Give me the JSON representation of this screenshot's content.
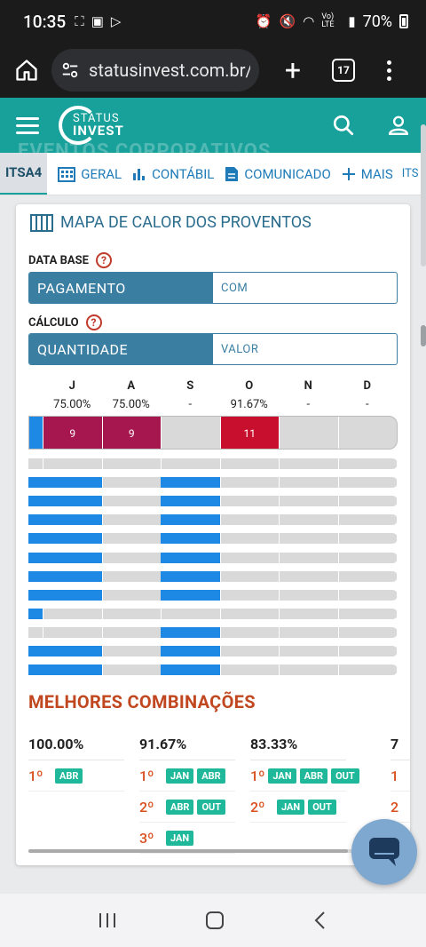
{
  "status_bar": {
    "time": "10:35",
    "battery": "70%",
    "net_label": "Vo) LTE"
  },
  "browser": {
    "url": "statusinvest.com.br/a",
    "tab_count": "17"
  },
  "site": {
    "logo_top": "STATUS",
    "logo_bottom": "INVEST",
    "ghost_title": "EVENTOS CORPORATIVOS"
  },
  "tabs": {
    "ticker": "ITSA4",
    "items": [
      {
        "label": "GERAL",
        "icon": "building-icon"
      },
      {
        "label": "CONTÁBIL",
        "icon": "bar-chart-icon"
      },
      {
        "label": "COMUNICADO",
        "icon": "document-icon"
      },
      {
        "label": "MAIS",
        "icon": "plus-icon"
      }
    ],
    "overflow": "ITS"
  },
  "heatmap": {
    "title": "MAPA DE CALOR DOS PROVENTOS",
    "data_base_label": "DATA BASE",
    "data_base_options": {
      "active": "PAGAMENTO",
      "inactive": "COM"
    },
    "calculo_label": "CÁLCULO",
    "calculo_options": {
      "active": "QUANTIDADE",
      "inactive": "VALOR"
    },
    "months": [
      "J",
      "A",
      "S",
      "O",
      "N",
      "D"
    ],
    "percentages": [
      "75.00%",
      "75.00%",
      "-",
      "91.67%",
      "-",
      "-"
    ],
    "counts": [
      "9",
      "9",
      "",
      "11",
      "",
      ""
    ],
    "count_colors": [
      "#a5174e",
      "#a5174e",
      "",
      "#c8102e",
      "",
      ""
    ],
    "year_rows": [
      [
        0,
        0,
        0,
        0,
        0,
        0,
        0
      ],
      [
        1,
        1,
        0,
        1,
        0,
        0,
        0
      ],
      [
        1,
        1,
        0,
        1,
        0,
        0,
        0
      ],
      [
        1,
        1,
        0,
        1,
        0,
        0,
        0
      ],
      [
        1,
        1,
        0,
        1,
        0,
        0,
        0
      ],
      [
        1,
        1,
        0,
        1,
        0,
        0,
        0
      ],
      [
        1,
        1,
        0,
        1,
        0,
        0,
        0
      ],
      [
        1,
        1,
        0,
        1,
        0,
        0,
        0
      ],
      [
        1,
        0,
        0,
        0,
        0,
        0,
        0
      ],
      [
        0,
        0,
        0,
        1,
        0,
        0,
        0
      ],
      [
        1,
        1,
        0,
        1,
        0,
        0,
        0
      ],
      [
        1,
        1,
        0,
        1,
        0,
        0,
        0
      ]
    ]
  },
  "combinations": {
    "title": "MELHORES COMBINAÇÕES",
    "columns": [
      {
        "pct": "100.00%",
        "lines": [
          {
            "rank": "1º",
            "chips": [
              "ABR"
            ]
          }
        ]
      },
      {
        "pct": "91.67%",
        "lines": [
          {
            "rank": "1º",
            "chips": [
              "JAN",
              "ABR"
            ]
          },
          {
            "rank": "2º",
            "chips": [
              "ABR",
              "OUT"
            ]
          },
          {
            "rank": "3º",
            "chips": [
              "JAN"
            ]
          }
        ]
      },
      {
        "pct": "83.33%",
        "lines": [
          {
            "rank": "1º",
            "chips": [
              "JAN",
              "ABR",
              "OUT"
            ]
          },
          {
            "rank": "2º",
            "chips": [
              "JAN",
              "OUT"
            ]
          }
        ]
      },
      {
        "pct": "7",
        "lines": [
          {
            "rank": "1",
            "chips": []
          },
          {
            "rank": "2",
            "chips": []
          }
        ]
      }
    ]
  }
}
